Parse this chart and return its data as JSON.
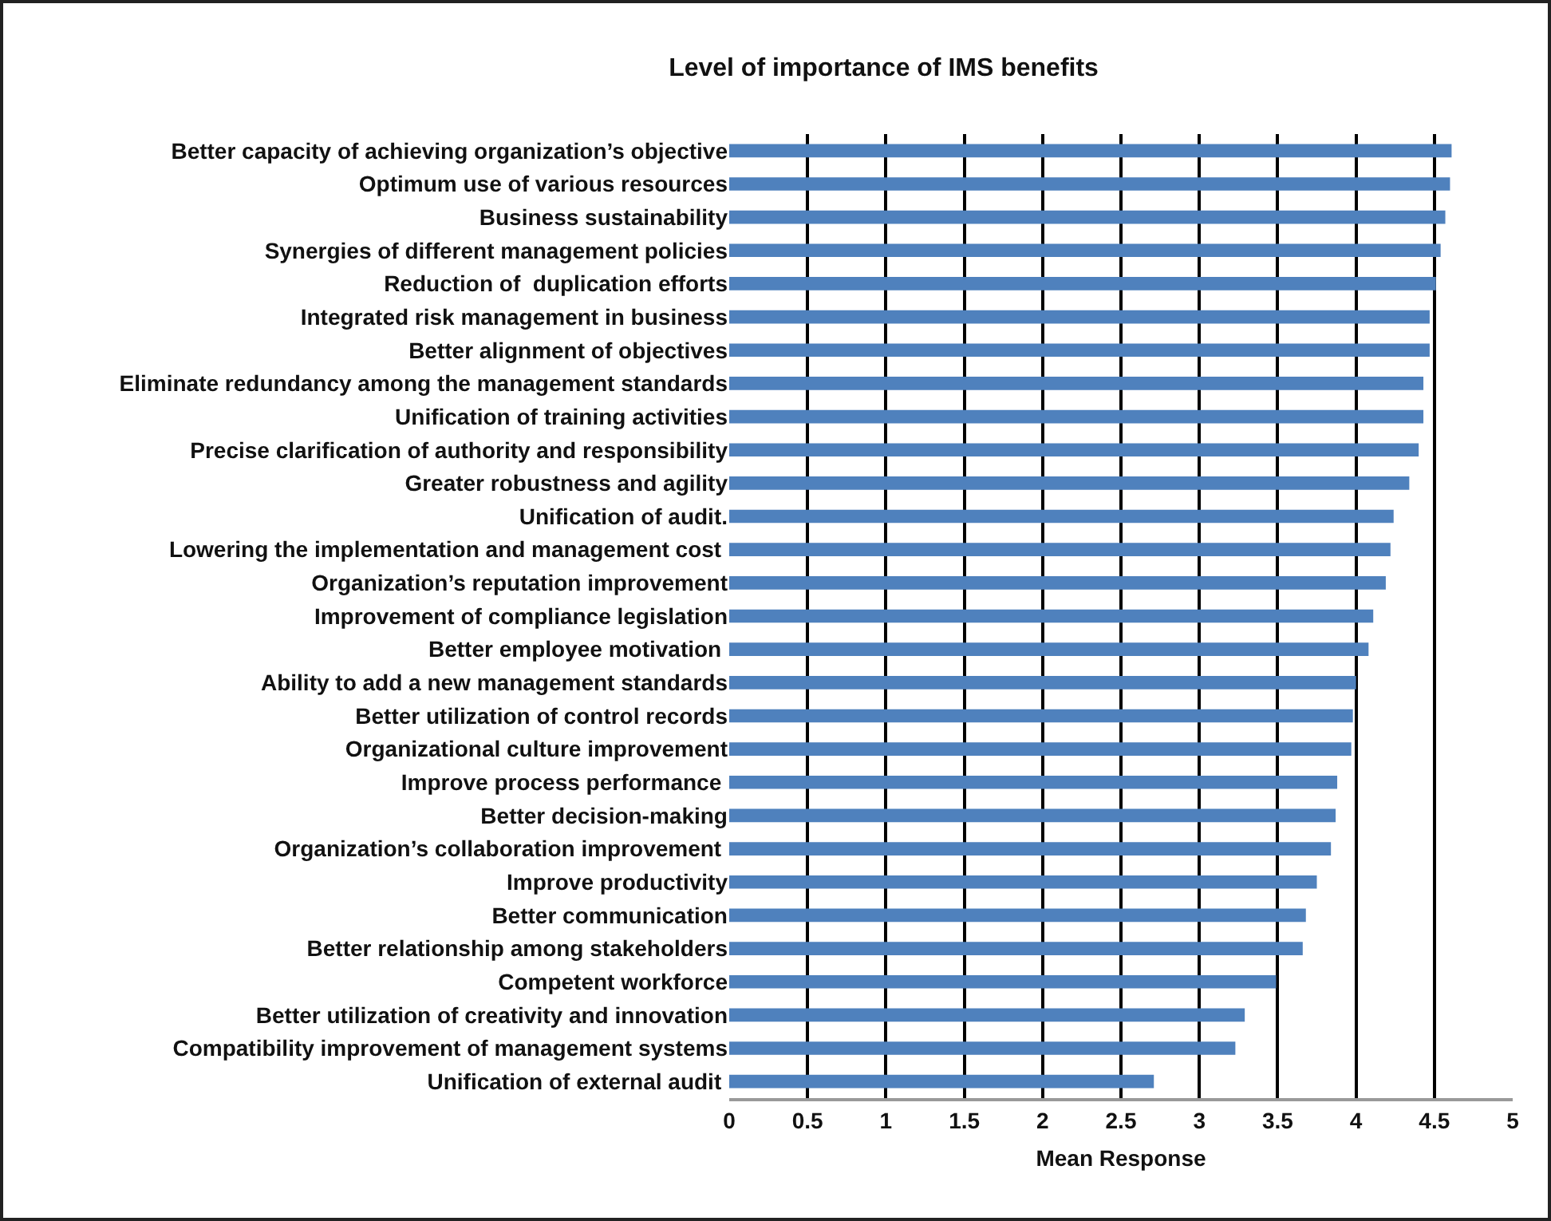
{
  "chart_data": {
    "type": "bar",
    "orientation": "horizontal",
    "title": "Level of importance of IMS benefits",
    "xlabel": "Mean Response",
    "categories": [
      "Better capacity of achieving organization’s objective",
      "Optimum use of various resources",
      "Business sustainability",
      "Synergies of different management policies",
      "Reduction of  duplication efforts",
      "Integrated risk management in business",
      "Better alignment of objectives",
      "Eliminate redundancy among the management standards",
      "Unification of training activities",
      "Precise clarification of authority and responsibility",
      "Greater robustness and agility",
      "Unification of audit.",
      "Lowering the implementation and management cost ",
      "Organization’s reputation improvement",
      "Improvement of compliance legislation",
      "Better employee motivation ",
      "Ability to add a new management standards",
      "Better utilization of control records",
      "Organizational culture improvement",
      "Improve process performance ",
      "Better decision-making",
      "Organization’s collaboration improvement ",
      "Improve productivity",
      "Better communication",
      "Better relationship among stakeholders",
      "Competent workforce",
      "Better utilization of creativity and innovation",
      "Compatibility improvement of management systems",
      "Unification of external audit "
    ],
    "values": [
      4.61,
      4.6,
      4.57,
      4.54,
      4.51,
      4.47,
      4.47,
      4.43,
      4.43,
      4.4,
      4.34,
      4.24,
      4.22,
      4.19,
      4.11,
      4.08,
      4.0,
      3.98,
      3.97,
      3.88,
      3.87,
      3.84,
      3.75,
      3.68,
      3.66,
      3.49,
      3.29,
      3.23,
      2.71
    ],
    "color": "#4f81bd",
    "xlim": [
      0,
      5
    ],
    "xticks": [
      0,
      0.5,
      1,
      1.5,
      2,
      2.5,
      3,
      3.5,
      4,
      4.5,
      5
    ],
    "grid": "x"
  }
}
